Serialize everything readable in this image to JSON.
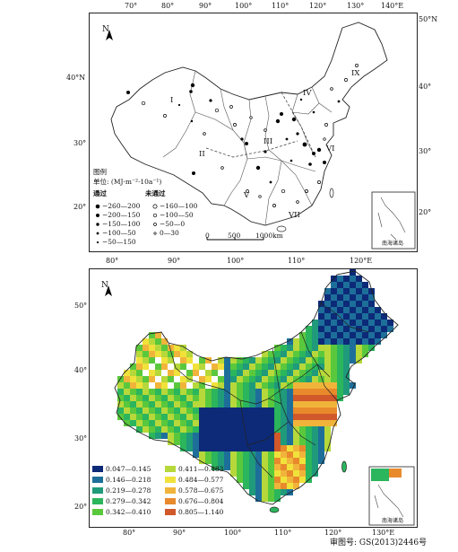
{
  "map_top": {
    "lon_ticks_top": [
      "70°",
      "80°",
      "90°",
      "100°",
      "110°",
      "120°",
      "130°",
      "140°E"
    ],
    "lat_ticks_left": [
      "40°N",
      "30°",
      "20°"
    ],
    "lat_ticks_right": [
      "50°N",
      "40°",
      "30°",
      "20°"
    ],
    "north": "N",
    "regions": [
      "I",
      "II",
      "III",
      "IV",
      "V",
      "VI",
      "VII",
      "IX"
    ],
    "legend": {
      "title": "图例",
      "unit": "单位: (MJ·m⁻²·10a⁻¹)",
      "passed_heading": "通过",
      "not_passed_heading": "未通过",
      "passed_items": [
        "−260—200",
        "−200—150",
        "−150—100",
        "−100—50",
        "−50—150"
      ],
      "not_passed_items": [
        "−160—100",
        "−100—50",
        "−50—0",
        "0—30"
      ]
    },
    "scalebar": [
      "0",
      "500",
      "1000km"
    ],
    "inset_label": "南海诸岛"
  },
  "map_bottom": {
    "lon_ticks_top": [
      "80°",
      "90°",
      "100°",
      "110°",
      "120°E"
    ],
    "lon_ticks_bottom": [
      "80°",
      "90°",
      "100°",
      "110°",
      "120°",
      "130°E"
    ],
    "lat_ticks_left": [
      "50°",
      "40°",
      "30°",
      "20°"
    ],
    "north": "N",
    "legend": [
      {
        "label": "0.047—0.145",
        "color": "#0c2a78"
      },
      {
        "label": "0.146—0.218",
        "color": "#1d6f9a"
      },
      {
        "label": "0.219—0.278",
        "color": "#1f9a7a"
      },
      {
        "label": "0.279—0.342",
        "color": "#2bb55c"
      },
      {
        "label": "0.342—0.410",
        "color": "#5ac83c"
      },
      {
        "label": "0.411—0.483",
        "color": "#b7d83a"
      },
      {
        "label": "0.484—0.577",
        "color": "#f0e23a"
      },
      {
        "label": "0.578—0.675",
        "color": "#f1b43a"
      },
      {
        "label": "0.676—0.804",
        "color": "#e88a2c"
      },
      {
        "label": "0.805—1.140",
        "color": "#d0582a"
      }
    ],
    "inset_label": "南海诸岛"
  },
  "footer": "审图号: GS(2013)2446号"
}
